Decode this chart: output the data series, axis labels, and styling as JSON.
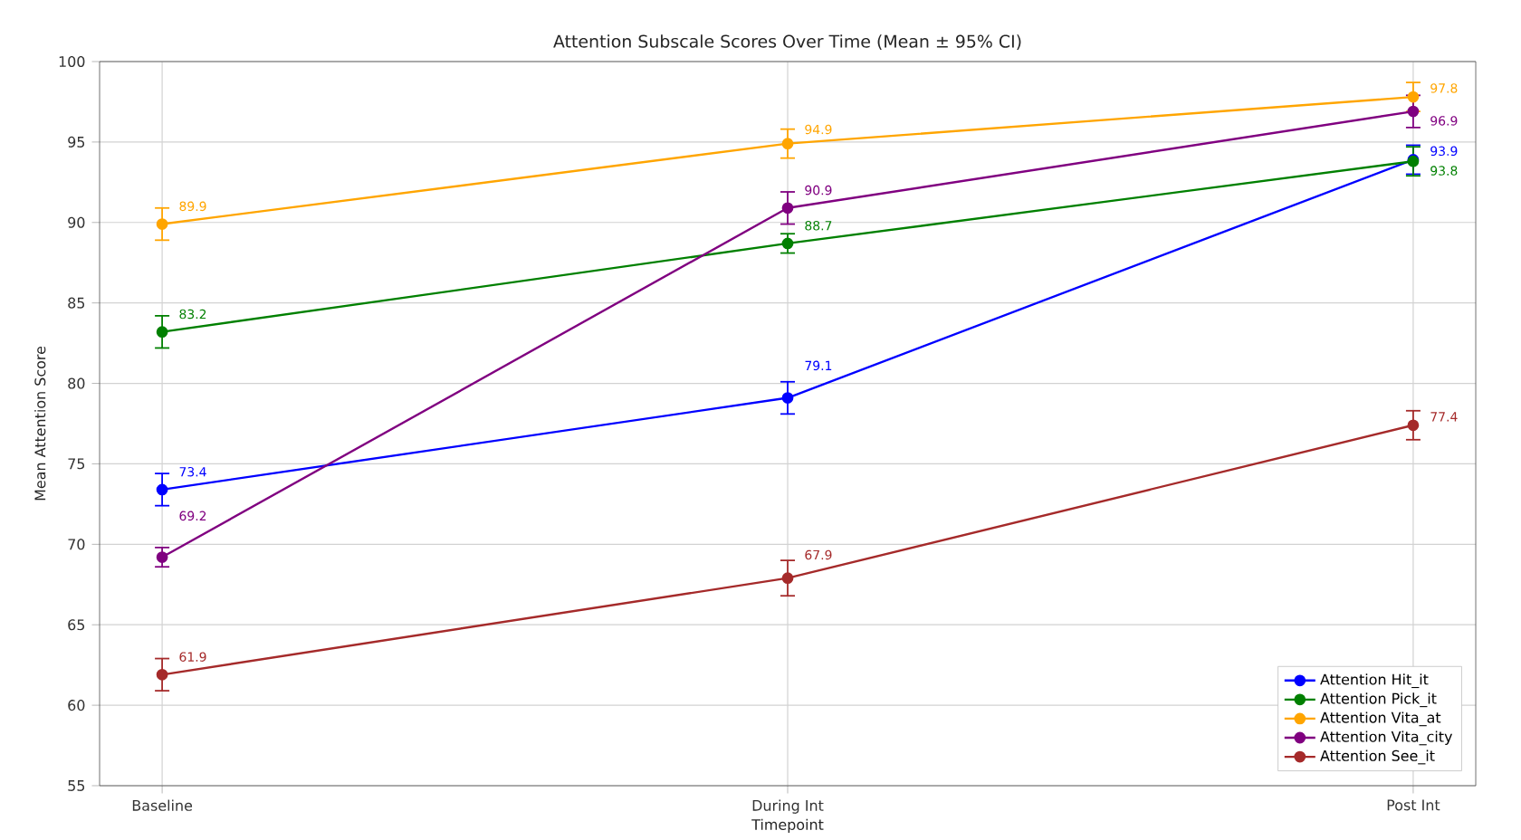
{
  "chart_data": {
    "type": "line",
    "title": "Attention Subscale Scores Over Time (Mean ± 95% CI)",
    "xlabel": "Timepoint",
    "ylabel": "Mean Attention Score",
    "categories": [
      "Baseline",
      "During Int",
      "Post Int"
    ],
    "series": [
      {
        "name": "Attention Hit_it",
        "color": "#0000ff",
        "values": [
          73.4,
          79.1,
          93.9
        ],
        "errors": [
          1.0,
          1.0,
          0.9
        ]
      },
      {
        "name": "Attention Pick_it",
        "color": "#008000",
        "values": [
          83.2,
          88.7,
          93.8
        ],
        "errors": [
          1.0,
          0.6,
          0.9
        ]
      },
      {
        "name": "Attention Vita_at",
        "color": "#ffa500",
        "values": [
          89.9,
          94.9,
          97.8
        ],
        "errors": [
          1.0,
          0.9,
          0.9
        ]
      },
      {
        "name": "Attention Vita_city",
        "color": "#800080",
        "values": [
          69.2,
          90.9,
          96.9
        ],
        "errors": [
          0.6,
          1.0,
          1.0
        ]
      },
      {
        "name": "Attention See_it",
        "color": "#a52a2a",
        "values": [
          61.9,
          67.9,
          77.4
        ],
        "errors": [
          1.0,
          1.1,
          0.9
        ]
      }
    ],
    "ylim": [
      55,
      100
    ],
    "yticks": [
      55,
      60,
      65,
      70,
      75,
      80,
      85,
      90,
      95,
      100
    ],
    "grid": true,
    "legend": "bottom right",
    "marker": "circle",
    "line_style": "solid",
    "data_labels": true
  }
}
